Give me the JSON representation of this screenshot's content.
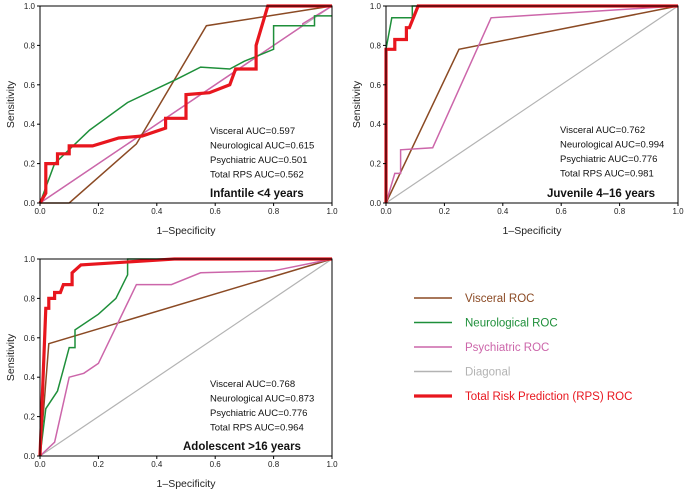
{
  "colors": {
    "visceral": "#8B4A24",
    "neurological": "#1E8F3A",
    "psychiatric": "#CC66AA",
    "diagonal": "#B3B3B3",
    "total": "#E8161E",
    "axis": "#000000"
  },
  "legend": [
    {
      "key": "visceral",
      "label": "Visceral ROC"
    },
    {
      "key": "neurological",
      "label": "Neurological ROC"
    },
    {
      "key": "psychiatric",
      "label": "Psychiatric ROC"
    },
    {
      "key": "diagonal",
      "label": "Diagonal"
    },
    {
      "key": "total",
      "label": "Total Risk Prediction (RPS) ROC"
    }
  ],
  "chart_data": [
    {
      "type": "line",
      "id": "infantile",
      "title": "Infantile <4 years",
      "xlabel": "1–Specificity",
      "ylabel": "Sensitivity",
      "xlim": [
        0,
        1
      ],
      "ylim": [
        0,
        1
      ],
      "x_ticks": [
        "0.0",
        "0.2",
        "0.4",
        "0.6",
        "0.8",
        "1.0"
      ],
      "y_ticks": [
        "0.0",
        "0.2",
        "0.4",
        "0.6",
        "0.8",
        "1.0"
      ],
      "annotations": [
        "Visceral AUC=0.597",
        "Neurological AUC=0.615",
        "Psychiatric AUC=0.501",
        "Total RPS AUC=0.562"
      ],
      "series": [
        {
          "key": "diagonal",
          "name": "Diagonal",
          "points": [
            [
              0,
              0
            ],
            [
              1,
              1
            ]
          ]
        },
        {
          "key": "psychiatric",
          "name": "Psychiatric ROC",
          "points": [
            [
              0,
              0
            ],
            [
              0.9,
              0.9
            ],
            [
              0.9,
              0.91
            ],
            [
              1,
              1
            ]
          ]
        },
        {
          "key": "visceral",
          "name": "Visceral ROC",
          "points": [
            [
              0,
              0
            ],
            [
              0.1,
              0
            ],
            [
              0.33,
              0.3
            ],
            [
              0.57,
              0.9
            ],
            [
              1,
              1
            ]
          ]
        },
        {
          "key": "neurological",
          "name": "Neurological ROC",
          "points": [
            [
              0,
              0
            ],
            [
              0.05,
              0.2
            ],
            [
              0.17,
              0.37
            ],
            [
              0.3,
              0.51
            ],
            [
              0.47,
              0.63
            ],
            [
              0.55,
              0.69
            ],
            [
              0.65,
              0.68
            ],
            [
              0.7,
              0.72
            ],
            [
              0.8,
              0.78
            ],
            [
              0.8,
              0.9
            ],
            [
              0.94,
              0.9
            ],
            [
              0.94,
              0.95
            ],
            [
              1,
              0.95
            ]
          ]
        },
        {
          "key": "total",
          "name": "Total Risk Prediction (RPS) ROC",
          "points": [
            [
              0,
              0
            ],
            [
              0.02,
              0.05
            ],
            [
              0.02,
              0.2
            ],
            [
              0.06,
              0.2
            ],
            [
              0.06,
              0.25
            ],
            [
              0.1,
              0.25
            ],
            [
              0.1,
              0.29
            ],
            [
              0.18,
              0.29
            ],
            [
              0.27,
              0.33
            ],
            [
              0.35,
              0.34
            ],
            [
              0.43,
              0.38
            ],
            [
              0.43,
              0.43
            ],
            [
              0.5,
              0.43
            ],
            [
              0.5,
              0.55
            ],
            [
              0.58,
              0.56
            ],
            [
              0.65,
              0.6
            ],
            [
              0.67,
              0.68
            ],
            [
              0.74,
              0.68
            ],
            [
              0.74,
              0.8
            ],
            [
              0.78,
              1
            ],
            [
              1,
              1
            ]
          ]
        }
      ]
    },
    {
      "type": "line",
      "id": "juvenile",
      "title": "Juvenile 4–16 years",
      "xlabel": "1–Specificity",
      "ylabel": "Sensitivity",
      "xlim": [
        0,
        1
      ],
      "ylim": [
        0,
        1
      ],
      "x_ticks": [
        "0.0",
        "0.2",
        "0.4",
        "0.6",
        "0.8",
        "1.0"
      ],
      "y_ticks": [
        "0.0",
        "0.2",
        "0.4",
        "0.6",
        "0.8",
        "1.0"
      ],
      "annotations": [
        "Visceral AUC=0.762",
        "Neurological AUC=0.994",
        "Psychiatric AUC=0.776",
        "Total RPS AUC=0.981"
      ],
      "series": [
        {
          "key": "diagonal",
          "name": "Diagonal",
          "points": [
            [
              0,
              0
            ],
            [
              1,
              1
            ]
          ]
        },
        {
          "key": "visceral",
          "name": "Visceral ROC",
          "points": [
            [
              0,
              0
            ],
            [
              0.25,
              0.78
            ],
            [
              1,
              1
            ]
          ]
        },
        {
          "key": "psychiatric",
          "name": "Psychiatric ROC",
          "points": [
            [
              0,
              0
            ],
            [
              0.03,
              0.15
            ],
            [
              0.05,
              0.15
            ],
            [
              0.05,
              0.27
            ],
            [
              0.16,
              0.28
            ],
            [
              0.36,
              0.94
            ],
            [
              1,
              1
            ]
          ]
        },
        {
          "key": "neurological",
          "name": "Neurological ROC",
          "points": [
            [
              0,
              0
            ],
            [
              0,
              0.78
            ],
            [
              0.02,
              0.94
            ],
            [
              0.09,
              0.94
            ],
            [
              0.09,
              1
            ],
            [
              1,
              1
            ]
          ]
        },
        {
          "key": "total",
          "name": "Total Risk Prediction (RPS) ROC",
          "points": [
            [
              0,
              0
            ],
            [
              0,
              0.78
            ],
            [
              0.03,
              0.78
            ],
            [
              0.03,
              0.83
            ],
            [
              0.07,
              0.83
            ],
            [
              0.07,
              0.89
            ],
            [
              0.08,
              0.89
            ],
            [
              0.11,
              1
            ],
            [
              1,
              1
            ]
          ]
        }
      ]
    },
    {
      "type": "line",
      "id": "adolescent",
      "title": "Adolescent >16 years",
      "xlabel": "1–Specificity",
      "ylabel": "Sensitivity",
      "xlim": [
        0,
        1
      ],
      "ylim": [
        0,
        1
      ],
      "x_ticks": [
        "0.0",
        "0.2",
        "0.4",
        "0.6",
        "0.8",
        "1.0"
      ],
      "y_ticks": [
        "0.0",
        "0.2",
        "0.4",
        "0.6",
        "0.8",
        "1.0"
      ],
      "annotations": [
        "Visceral AUC=0.768",
        "Neurological AUC=0.873",
        "Psychiatric AUC=0.776",
        "Total RPS AUC=0.964"
      ],
      "series": [
        {
          "key": "diagonal",
          "name": "Diagonal",
          "points": [
            [
              0,
              0
            ],
            [
              1,
              1
            ]
          ]
        },
        {
          "key": "visceral",
          "name": "Visceral ROC",
          "points": [
            [
              0,
              0
            ],
            [
              0.03,
              0.57
            ],
            [
              1,
              1
            ]
          ]
        },
        {
          "key": "psychiatric",
          "name": "Psychiatric ROC",
          "points": [
            [
              0,
              0
            ],
            [
              0.05,
              0.07
            ],
            [
              0.1,
              0.4
            ],
            [
              0.15,
              0.42
            ],
            [
              0.2,
              0.47
            ],
            [
              0.33,
              0.87
            ],
            [
              0.45,
              0.87
            ],
            [
              0.55,
              0.93
            ],
            [
              0.8,
              0.94
            ],
            [
              1,
              1
            ]
          ]
        },
        {
          "key": "neurological",
          "name": "Neurological ROC",
          "points": [
            [
              0,
              0
            ],
            [
              0.02,
              0.24
            ],
            [
              0.06,
              0.33
            ],
            [
              0.08,
              0.44
            ],
            [
              0.1,
              0.55
            ],
            [
              0.12,
              0.55
            ],
            [
              0.12,
              0.64
            ],
            [
              0.2,
              0.72
            ],
            [
              0.26,
              0.8
            ],
            [
              0.3,
              0.92
            ],
            [
              0.3,
              1
            ],
            [
              1,
              1
            ]
          ]
        },
        {
          "key": "total",
          "name": "Total Risk Prediction (RPS) ROC",
          "points": [
            [
              0,
              0
            ],
            [
              0.02,
              0.75
            ],
            [
              0.03,
              0.75
            ],
            [
              0.03,
              0.8
            ],
            [
              0.05,
              0.8
            ],
            [
              0.05,
              0.83
            ],
            [
              0.07,
              0.83
            ],
            [
              0.08,
              0.87
            ],
            [
              0.11,
              0.87
            ],
            [
              0.11,
              0.93
            ],
            [
              0.14,
              0.97
            ],
            [
              0.46,
              1
            ],
            [
              1,
              1
            ]
          ]
        }
      ]
    }
  ]
}
